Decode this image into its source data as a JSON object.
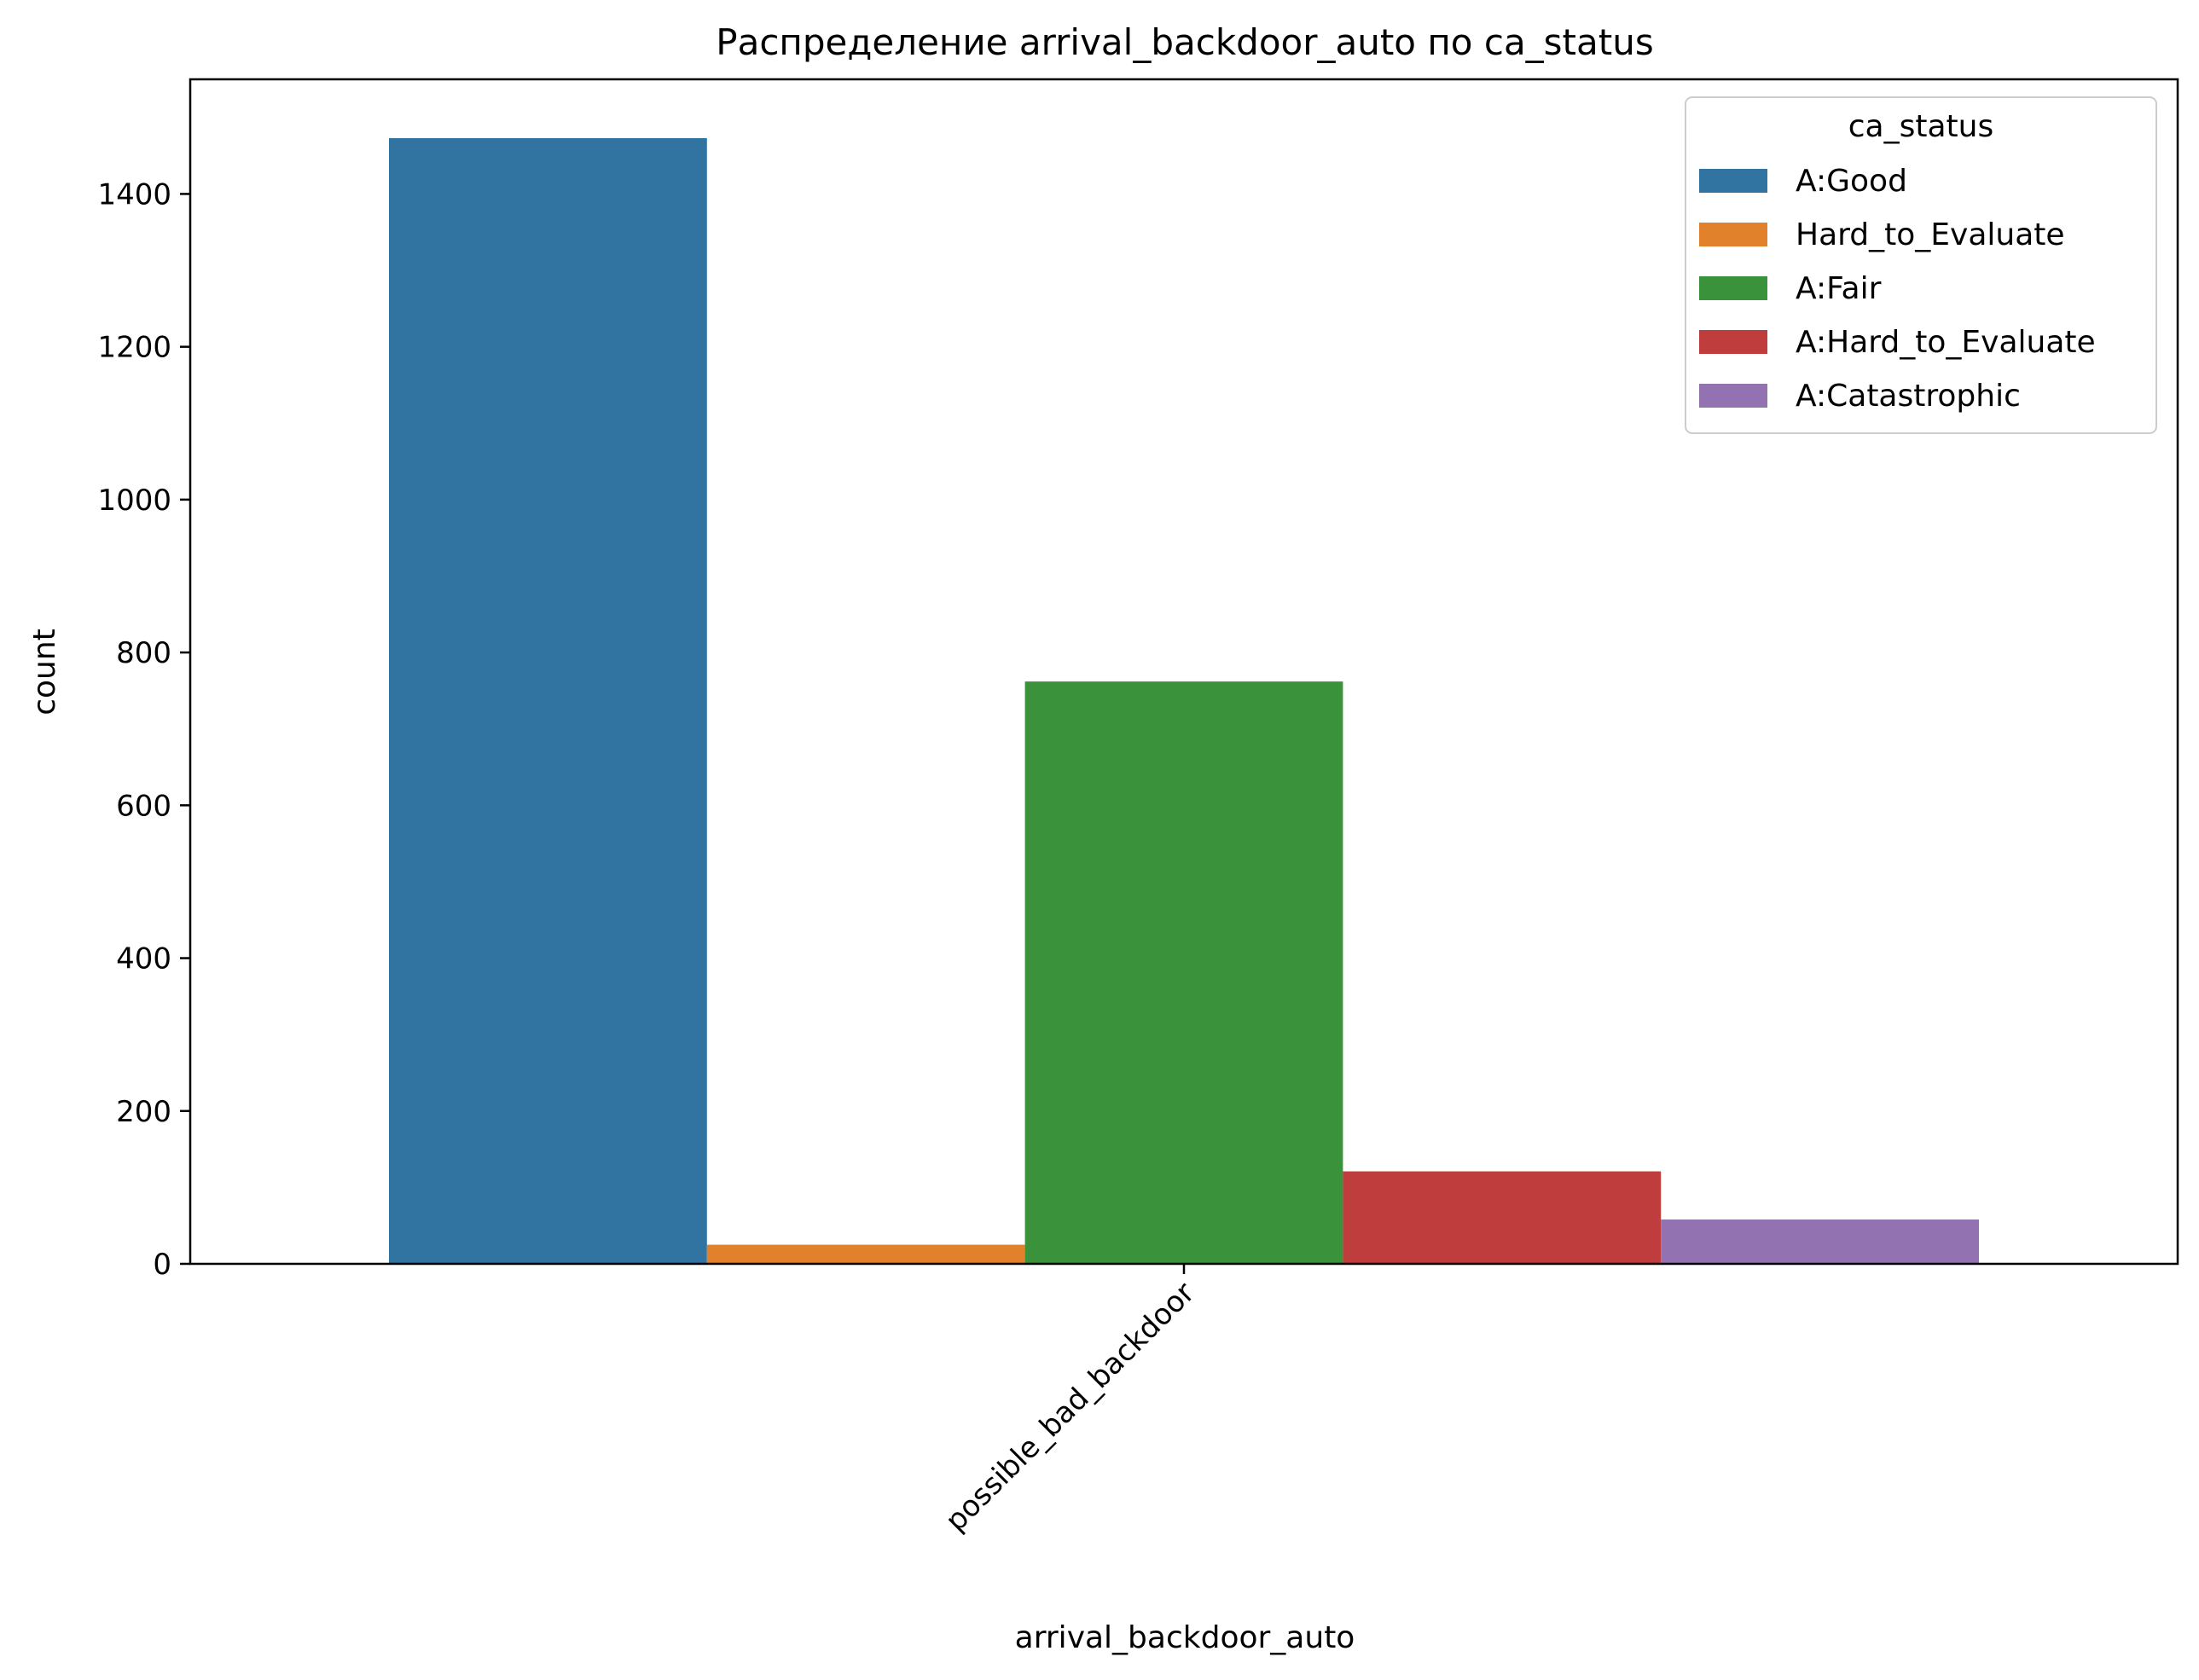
{
  "chart_data": {
    "type": "bar",
    "title": "Распределение arrival_backdoor_auto по ca_status",
    "xlabel": "arrival_backdoor_auto",
    "ylabel": "count",
    "categories": [
      "possible_bad_backdoor"
    ],
    "ylim": [
      0,
      1550
    ],
    "yticks": [
      0,
      200,
      400,
      600,
      800,
      1000,
      1200,
      1400
    ],
    "grid": false,
    "legend": {
      "title": "ca_status",
      "placement": "top-right"
    },
    "series": [
      {
        "name": "A:Good",
        "color": "#3274a1",
        "values": [
          1473
        ]
      },
      {
        "name": "Hard_to_Evaluate",
        "color": "#e1812c",
        "values": [
          25
        ]
      },
      {
        "name": "A:Fair",
        "color": "#3a923a",
        "values": [
          762
        ]
      },
      {
        "name": "A:Hard_to_Evaluate",
        "color": "#c03d3e",
        "values": [
          121
        ]
      },
      {
        "name": "A:Catastrophic",
        "color": "#9372b2",
        "values": [
          58
        ]
      }
    ]
  }
}
